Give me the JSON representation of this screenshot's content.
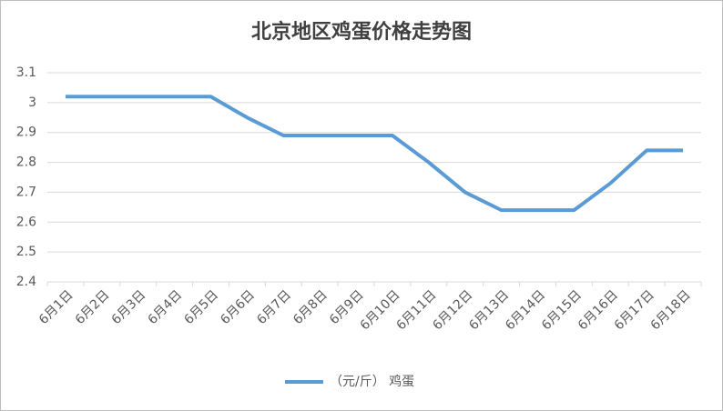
{
  "chart_data": {
    "type": "line",
    "title": "北京地区鸡蛋价格走势图",
    "categories": [
      "6月1日",
      "6月2日",
      "6月3日",
      "6月4日",
      "6月5日",
      "6月6日",
      "6月7日",
      "6月8日",
      "6月9日",
      "6月10日",
      "6月11日",
      "6月12日",
      "6月13日",
      "6月14日",
      "6月15日",
      "6月16日",
      "6月17日",
      "6月18日"
    ],
    "series": [
      {
        "name": "（元/斤） 鸡蛋",
        "color": "#5b9bd5",
        "values": [
          3.02,
          3.02,
          3.02,
          3.02,
          3.02,
          2.95,
          2.89,
          2.89,
          2.89,
          2.89,
          2.8,
          2.7,
          2.64,
          2.64,
          2.64,
          2.73,
          2.84,
          2.84
        ]
      }
    ],
    "ylim": [
      2.4,
      3.1
    ],
    "yticks": [
      2.4,
      2.5,
      2.6,
      2.7,
      2.8,
      2.9,
      3,
      3.1
    ],
    "grid": true,
    "legend": "bottom"
  }
}
